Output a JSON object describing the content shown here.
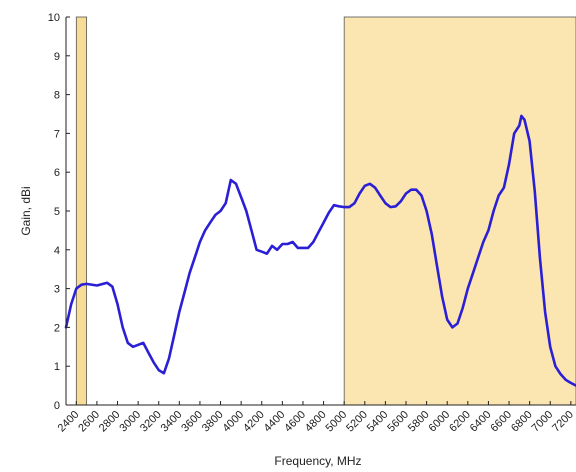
{
  "chart_data": {
    "type": "line",
    "title": "",
    "xlabel": "Frequency, MHz",
    "ylabel": "Gain, dBi",
    "xlim": [
      2300,
      7250
    ],
    "ylim": [
      0,
      10
    ],
    "x_ticks": [
      2400,
      2600,
      2800,
      3000,
      3200,
      3400,
      3600,
      3800,
      4000,
      4200,
      4400,
      4600,
      4800,
      5000,
      5200,
      5400,
      5600,
      5800,
      6000,
      6200,
      6400,
      6600,
      6800,
      7000,
      7200
    ],
    "y_ticks": [
      0,
      1,
      2,
      3,
      4,
      5,
      6,
      7,
      8,
      9,
      10
    ],
    "grid": false,
    "legend": "none",
    "highlight_bands": [
      {
        "x_start": 2400,
        "x_end": 2500,
        "color": "#f7dc98"
      },
      {
        "x_start": 5000,
        "x_end": 7250,
        "color": "#fbe6b2"
      }
    ],
    "series": [
      {
        "color": "#2b1fd6",
        "points": [
          [
            2300,
            2.0
          ],
          [
            2350,
            2.6
          ],
          [
            2400,
            3.0
          ],
          [
            2450,
            3.1
          ],
          [
            2500,
            3.12
          ],
          [
            2600,
            3.08
          ],
          [
            2700,
            3.15
          ],
          [
            2750,
            3.05
          ],
          [
            2800,
            2.6
          ],
          [
            2850,
            2.0
          ],
          [
            2900,
            1.6
          ],
          [
            2950,
            1.5
          ],
          [
            3050,
            1.6
          ],
          [
            3100,
            1.35
          ],
          [
            3150,
            1.1
          ],
          [
            3200,
            0.9
          ],
          [
            3250,
            0.82
          ],
          [
            3300,
            1.2
          ],
          [
            3350,
            1.8
          ],
          [
            3400,
            2.4
          ],
          [
            3450,
            2.9
          ],
          [
            3500,
            3.4
          ],
          [
            3550,
            3.8
          ],
          [
            3600,
            4.2
          ],
          [
            3650,
            4.5
          ],
          [
            3700,
            4.7
          ],
          [
            3750,
            4.9
          ],
          [
            3800,
            5.0
          ],
          [
            3850,
            5.2
          ],
          [
            3900,
            5.8
          ],
          [
            3950,
            5.7
          ],
          [
            4000,
            5.35
          ],
          [
            4050,
            5.0
          ],
          [
            4100,
            4.5
          ],
          [
            4150,
            4.0
          ],
          [
            4200,
            3.95
          ],
          [
            4250,
            3.9
          ],
          [
            4300,
            4.1
          ],
          [
            4350,
            4.0
          ],
          [
            4400,
            4.15
          ],
          [
            4450,
            4.15
          ],
          [
            4500,
            4.2
          ],
          [
            4550,
            4.05
          ],
          [
            4650,
            4.05
          ],
          [
            4700,
            4.2
          ],
          [
            4750,
            4.45
          ],
          [
            4800,
            4.7
          ],
          [
            4850,
            4.95
          ],
          [
            4900,
            5.15
          ],
          [
            4950,
            5.12
          ],
          [
            5000,
            5.1
          ],
          [
            5050,
            5.1
          ],
          [
            5100,
            5.2
          ],
          [
            5150,
            5.45
          ],
          [
            5200,
            5.65
          ],
          [
            5250,
            5.7
          ],
          [
            5300,
            5.6
          ],
          [
            5350,
            5.4
          ],
          [
            5400,
            5.2
          ],
          [
            5450,
            5.1
          ],
          [
            5500,
            5.12
          ],
          [
            5550,
            5.25
          ],
          [
            5600,
            5.45
          ],
          [
            5650,
            5.55
          ],
          [
            5700,
            5.55
          ],
          [
            5750,
            5.4
          ],
          [
            5800,
            5.0
          ],
          [
            5850,
            4.4
          ],
          [
            5900,
            3.6
          ],
          [
            5950,
            2.8
          ],
          [
            6000,
            2.2
          ],
          [
            6050,
            2.0
          ],
          [
            6100,
            2.1
          ],
          [
            6150,
            2.5
          ],
          [
            6200,
            3.0
          ],
          [
            6250,
            3.4
          ],
          [
            6300,
            3.8
          ],
          [
            6350,
            4.2
          ],
          [
            6400,
            4.5
          ],
          [
            6450,
            5.0
          ],
          [
            6500,
            5.4
          ],
          [
            6550,
            5.6
          ],
          [
            6600,
            6.2
          ],
          [
            6650,
            7.0
          ],
          [
            6700,
            7.2
          ],
          [
            6720,
            7.45
          ],
          [
            6750,
            7.35
          ],
          [
            6800,
            6.8
          ],
          [
            6850,
            5.5
          ],
          [
            6900,
            3.8
          ],
          [
            6950,
            2.4
          ],
          [
            7000,
            1.5
          ],
          [
            7050,
            1.0
          ],
          [
            7100,
            0.8
          ],
          [
            7150,
            0.65
          ],
          [
            7200,
            0.57
          ],
          [
            7250,
            0.5
          ]
        ]
      }
    ]
  }
}
